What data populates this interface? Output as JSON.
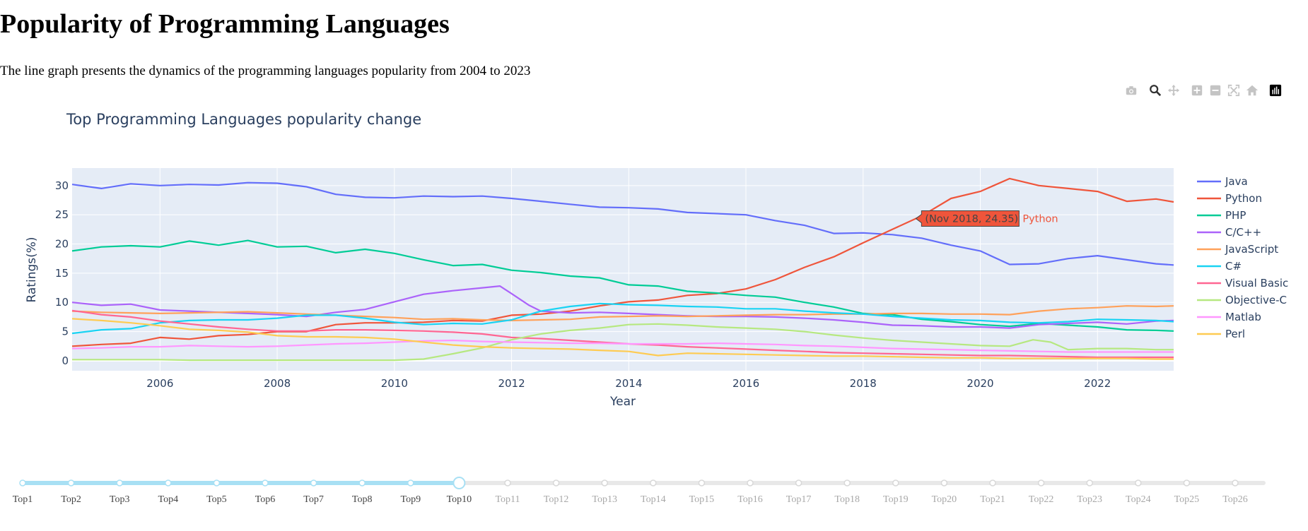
{
  "page": {
    "title": "Popularity of Programming Languages",
    "description": "The line graph presents the dynamics of the programming languages popularity from 2004 to 2023"
  },
  "modebar": {
    "icons": [
      "camera-icon",
      "zoom-icon",
      "pan-icon",
      "zoom-in-icon",
      "zoom-out-icon",
      "autoscale-icon",
      "reset-axes-icon",
      "plotly-logo-icon"
    ],
    "active": "zoom-icon"
  },
  "chart_data": {
    "type": "line",
    "title": "Top Programming Languages popularity change",
    "xlabel": "Year",
    "ylabel": "Ratings(%)",
    "xlim": [
      2004.5,
      2023.3
    ],
    "ylim": [
      -1.7,
      33
    ],
    "x_ticks": [
      "2006",
      "2008",
      "2010",
      "2012",
      "2014",
      "2016",
      "2018",
      "2020",
      "2022"
    ],
    "y_ticks": [
      "0",
      "5",
      "10",
      "15",
      "20",
      "25",
      "30"
    ],
    "grid": true,
    "legend_position": "right",
    "background": "#e5ecf6",
    "series": [
      {
        "name": "Java",
        "color": "#636efa",
        "x": [
          2004.5,
          2005,
          2005.5,
          2006,
          2006.5,
          2007,
          2007.5,
          2008,
          2008.5,
          2009,
          2009.5,
          2010,
          2010.5,
          2011,
          2011.5,
          2012,
          2012.5,
          2013,
          2013.5,
          2014,
          2014.5,
          2015,
          2015.5,
          2016,
          2016.5,
          2017,
          2017.5,
          2018,
          2018.5,
          2019,
          2019.5,
          2020,
          2020.5,
          2021,
          2021.5,
          2022,
          2022.5,
          2023,
          2023.3
        ],
        "y": [
          30.2,
          29.5,
          30.3,
          30,
          30.2,
          30.1,
          30.5,
          30.4,
          29.8,
          28.5,
          28.0,
          27.9,
          28.2,
          28.1,
          28.2,
          27.8,
          27.3,
          26.8,
          26.3,
          26.2,
          26.0,
          25.4,
          25.2,
          25.0,
          24.0,
          23.2,
          21.8,
          21.9,
          21.6,
          21.0,
          19.8,
          18.8,
          16.5,
          16.6,
          17.5,
          18.0,
          17.3,
          16.6,
          16.4
        ]
      },
      {
        "name": "Python",
        "color": "#ef553b",
        "x": [
          2004.5,
          2005,
          2005.5,
          2006,
          2006.5,
          2007,
          2007.5,
          2008,
          2008.5,
          2009,
          2009.5,
          2010,
          2010.5,
          2011,
          2011.5,
          2012,
          2012.5,
          2013,
          2013.5,
          2014,
          2014.5,
          2015,
          2015.5,
          2016,
          2016.5,
          2017,
          2017.5,
          2018,
          2018.5,
          2019,
          2019.5,
          2020,
          2020.5,
          2021,
          2021.5,
          2022,
          2022.5,
          2023,
          2023.3
        ],
        "y": [
          2.5,
          2.8,
          3.0,
          4.0,
          3.7,
          4.3,
          4.5,
          5.0,
          5.0,
          6.2,
          6.5,
          6.5,
          6.6,
          6.9,
          6.8,
          7.8,
          8.0,
          8.5,
          9.4,
          10.1,
          10.4,
          11.2,
          11.5,
          12.3,
          13.9,
          16.0,
          17.8,
          20.2,
          22.5,
          24.8,
          27.8,
          29.0,
          31.2,
          30.0,
          29.5,
          29.0,
          27.3,
          27.7,
          27.2
        ]
      },
      {
        "name": "PHP",
        "color": "#00cc96",
        "x": [
          2004.5,
          2005,
          2005.5,
          2006,
          2006.5,
          2007,
          2007.5,
          2008,
          2008.5,
          2009,
          2009.5,
          2010,
          2010.5,
          2011,
          2011.5,
          2012,
          2012.5,
          2013,
          2013.5,
          2014,
          2014.5,
          2015,
          2015.5,
          2016,
          2016.5,
          2017,
          2017.5,
          2018,
          2018.5,
          2019,
          2019.5,
          2020,
          2020.5,
          2021,
          2021.5,
          2022,
          2022.5,
          2023,
          2023.3
        ],
        "y": [
          18.8,
          19.5,
          19.7,
          19.5,
          20.5,
          19.8,
          20.6,
          19.5,
          19.6,
          18.5,
          19.1,
          18.4,
          17.3,
          16.3,
          16.5,
          15.5,
          15.1,
          14.5,
          14.2,
          13.0,
          12.8,
          11.9,
          11.6,
          11.2,
          10.9,
          10.0,
          9.2,
          8.1,
          7.9,
          7.1,
          6.7,
          6.2,
          5.9,
          6.4,
          6.1,
          5.8,
          5.3,
          5.2,
          5.1
        ]
      },
      {
        "name": "C/C++",
        "color": "#ab63fa",
        "x": [
          2004.5,
          2005,
          2005.5,
          2006,
          2006.5,
          2007,
          2007.5,
          2008,
          2008.5,
          2009,
          2009.5,
          2010,
          2010.5,
          2011,
          2011.5,
          2011.8,
          2012,
          2012.3,
          2012.5,
          2013,
          2013.5,
          2014,
          2014.5,
          2015,
          2015.5,
          2016,
          2016.5,
          2017,
          2017.5,
          2018,
          2018.5,
          2019,
          2019.5,
          2020,
          2020.5,
          2021,
          2021.5,
          2022,
          2022.5,
          2023,
          2023.3
        ],
        "y": [
          10.0,
          9.5,
          9.7,
          8.7,
          8.5,
          8.3,
          8.1,
          7.9,
          7.6,
          8.3,
          8.8,
          10.1,
          11.4,
          12.0,
          12.5,
          12.8,
          11.5,
          9.5,
          8.5,
          8.2,
          8.3,
          8.1,
          7.9,
          7.7,
          7.6,
          7.6,
          7.5,
          7.3,
          7.0,
          6.6,
          6.1,
          6.0,
          5.8,
          5.8,
          5.6,
          6.2,
          6.4,
          6.6,
          6.3,
          6.8,
          6.9
        ]
      },
      {
        "name": "JavaScript",
        "color": "#ffa15a",
        "x": [
          2004.5,
          2005,
          2005.5,
          2006,
          2006.5,
          2007,
          2007.5,
          2008,
          2008.5,
          2009,
          2009.5,
          2010,
          2010.5,
          2011,
          2011.5,
          2012,
          2012.5,
          2013,
          2013.5,
          2014,
          2014.5,
          2015,
          2015.5,
          2016,
          2016.5,
          2017,
          2017.5,
          2018,
          2018.5,
          2019,
          2019.5,
          2020,
          2020.5,
          2021,
          2021.5,
          2022,
          2022.5,
          2023,
          2023.3
        ],
        "y": [
          8.5,
          8.3,
          8.2,
          8.1,
          8.2,
          8.3,
          8.4,
          8.2,
          8.0,
          7.8,
          7.6,
          7.4,
          7.1,
          7.2,
          7.0,
          6.9,
          7.0,
          7.1,
          7.5,
          7.6,
          7.7,
          7.6,
          7.7,
          7.8,
          7.9,
          7.9,
          8.0,
          8.0,
          8.1,
          8.1,
          8.0,
          8.0,
          7.9,
          8.5,
          8.9,
          9.1,
          9.4,
          9.3,
          9.4
        ]
      },
      {
        "name": "C#",
        "color": "#19d3f3",
        "x": [
          2004.5,
          2005,
          2005.5,
          2006,
          2006.5,
          2007,
          2007.5,
          2008,
          2008.5,
          2009,
          2009.5,
          2010,
          2010.5,
          2011,
          2011.5,
          2012,
          2012.5,
          2013,
          2013.5,
          2014,
          2014.5,
          2015,
          2015.5,
          2016,
          2016.5,
          2017,
          2017.5,
          2018,
          2018.5,
          2019,
          2019.5,
          2020,
          2020.5,
          2021,
          2021.5,
          2022,
          2022.5,
          2023,
          2023.3
        ],
        "y": [
          4.7,
          5.3,
          5.5,
          6.5,
          6.9,
          7.0,
          7.0,
          7.3,
          7.8,
          7.8,
          7.3,
          6.6,
          6.2,
          6.4,
          6.3,
          7.0,
          8.5,
          9.3,
          9.8,
          9.6,
          9.5,
          9.3,
          9.2,
          8.9,
          8.9,
          8.5,
          8.2,
          8.0,
          7.6,
          7.3,
          7.0,
          6.9,
          6.6,
          6.5,
          6.7,
          7.1,
          7.0,
          6.9,
          6.7
        ]
      },
      {
        "name": "Visual Basic",
        "color": "#ff6692",
        "x": [
          2004.5,
          2005,
          2005.5,
          2006,
          2006.5,
          2007,
          2007.5,
          2008,
          2008.5,
          2009,
          2009.5,
          2010,
          2010.5,
          2011,
          2011.5,
          2012,
          2012.5,
          2013,
          2013.5,
          2014,
          2014.5,
          2015,
          2015.5,
          2016,
          2016.5,
          2017,
          2017.5,
          2018,
          2018.5,
          2019,
          2019.5,
          2020,
          2020.5,
          2021,
          2021.5,
          2022,
          2022.5,
          2023,
          2023.3
        ],
        "y": [
          8.6,
          7.9,
          7.5,
          6.8,
          6.3,
          5.8,
          5.4,
          5.1,
          5.1,
          5.3,
          5.3,
          5.2,
          5.1,
          4.9,
          4.6,
          4.0,
          3.8,
          3.5,
          3.2,
          2.9,
          2.7,
          2.4,
          2.2,
          2.0,
          1.8,
          1.6,
          1.4,
          1.3,
          1.2,
          1.1,
          1.0,
          0.9,
          0.9,
          0.8,
          0.7,
          0.6,
          0.6,
          0.6,
          0.6
        ]
      },
      {
        "name": "Objective-C",
        "color": "#b6e880",
        "x": [
          2004.5,
          2005,
          2005.5,
          2006,
          2006.5,
          2007,
          2007.5,
          2008,
          2008.5,
          2009,
          2009.5,
          2010,
          2010.5,
          2011,
          2011.5,
          2012,
          2012.5,
          2013,
          2013.5,
          2014,
          2014.5,
          2015,
          2015.5,
          2016,
          2016.5,
          2017,
          2017.5,
          2018,
          2018.5,
          2019,
          2019.5,
          2020,
          2020.5,
          2020.9,
          2021.2,
          2021.5,
          2022,
          2022.5,
          2023,
          2023.3
        ],
        "y": [
          0.2,
          0.2,
          0.2,
          0.2,
          0.1,
          0.1,
          0.1,
          0.1,
          0.1,
          0.1,
          0.1,
          0.1,
          0.3,
          1.2,
          2.2,
          3.6,
          4.6,
          5.2,
          5.6,
          6.2,
          6.3,
          6.1,
          5.8,
          5.6,
          5.4,
          5.0,
          4.4,
          3.9,
          3.5,
          3.2,
          2.9,
          2.6,
          2.5,
          3.6,
          3.2,
          1.9,
          2.1,
          2.1,
          1.9,
          1.9
        ]
      },
      {
        "name": "Matlab",
        "color": "#ff97ff",
        "x": [
          2004.5,
          2005,
          2005.5,
          2006,
          2006.5,
          2007,
          2007.5,
          2008,
          2008.5,
          2009,
          2009.5,
          2010,
          2010.5,
          2011,
          2011.5,
          2012,
          2012.5,
          2013,
          2013.5,
          2014,
          2014.5,
          2015,
          2015.5,
          2016,
          2016.5,
          2017,
          2017.5,
          2018,
          2018.5,
          2019,
          2019.5,
          2020,
          2020.5,
          2021,
          2021.5,
          2022,
          2022.5,
          2023,
          2023.3
        ],
        "y": [
          2.1,
          2.2,
          2.4,
          2.4,
          2.6,
          2.5,
          2.4,
          2.5,
          2.7,
          2.9,
          3.0,
          3.2,
          3.4,
          3.5,
          3.3,
          3.2,
          3.1,
          3.0,
          3.0,
          2.9,
          2.9,
          2.9,
          3.0,
          2.9,
          2.8,
          2.6,
          2.5,
          2.3,
          2.1,
          2.0,
          1.9,
          1.8,
          1.7,
          1.6,
          1.5,
          1.5,
          1.5,
          1.5,
          1.5
        ]
      },
      {
        "name": "Perl",
        "color": "#fecb52",
        "x": [
          2004.5,
          2005,
          2005.5,
          2006,
          2006.5,
          2007,
          2007.5,
          2008,
          2008.5,
          2009,
          2009.5,
          2010,
          2010.5,
          2011,
          2011.5,
          2012,
          2012.5,
          2013,
          2013.5,
          2014,
          2014.5,
          2015,
          2015.5,
          2016,
          2016.5,
          2017,
          2017.5,
          2018,
          2018.5,
          2019,
          2019.5,
          2020,
          2020.5,
          2021,
          2021.5,
          2022,
          2022.5,
          2023,
          2023.3
        ],
        "y": [
          7.2,
          6.9,
          6.5,
          6.0,
          5.4,
          5.2,
          4.9,
          4.3,
          4.1,
          4.1,
          4.0,
          3.7,
          3.2,
          2.7,
          2.4,
          2.2,
          2.1,
          2.0,
          1.8,
          1.6,
          0.9,
          1.3,
          1.2,
          1.1,
          1.0,
          0.9,
          0.8,
          0.8,
          0.7,
          0.6,
          0.5,
          0.5,
          0.4,
          0.4,
          0.4,
          0.4,
          0.4,
          0.3,
          0.3
        ]
      }
    ],
    "hover": {
      "series": "Python",
      "x": 2018.9,
      "y": 24.35,
      "text": "(Nov 2018, 24.35)",
      "label": "Python"
    }
  },
  "slider": {
    "steps": [
      "Top1",
      "Top2",
      "Top3",
      "Top4",
      "Top5",
      "Top6",
      "Top7",
      "Top8",
      "Top9",
      "Top10",
      "Top11",
      "Top12",
      "Top13",
      "Top14",
      "Top15",
      "Top16",
      "Top17",
      "Top18",
      "Top19",
      "Top20",
      "Top21",
      "Top22",
      "Top23",
      "Top24",
      "Top25",
      "Top26"
    ],
    "active_index": 9,
    "active_color": "#a8e0f4",
    "inactive_color": "#e8e8e8"
  }
}
